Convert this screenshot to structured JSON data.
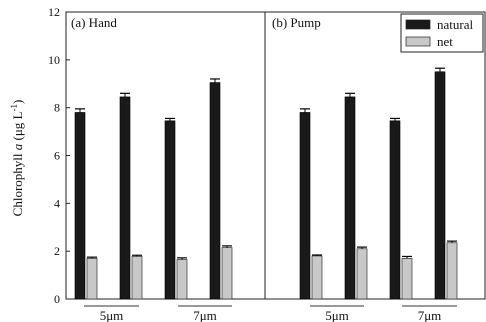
{
  "chart_data": {
    "type": "bar",
    "ylabel": {
      "prefix": "Chlorophyll ",
      "symbol": "a",
      "unit": " (μg L",
      "exponent": "-1",
      "close": ")"
    },
    "ylim": [
      0,
      12
    ],
    "yticks": [
      "0",
      "2",
      "4",
      "6",
      "8",
      "10",
      "12"
    ],
    "grid": false,
    "legend_position": "top-right",
    "colors": {
      "natural": "#1a1a1a",
      "net": "#c8c8c8"
    },
    "series": [
      {
        "name": "natural"
      },
      {
        "name": "net"
      }
    ],
    "panels": [
      {
        "label": "(a) Hand",
        "groups": [
          {
            "label": "5μm",
            "pairs": [
              {
                "natural": 7.8,
                "natural_err": 0.15,
                "net": 1.7,
                "net_err": 0.05
              },
              {
                "natural": 8.45,
                "natural_err": 0.15,
                "net": 1.78,
                "net_err": 0.05
              }
            ]
          },
          {
            "label": "7μm",
            "pairs": [
              {
                "natural": 7.45,
                "natural_err": 0.1,
                "net": 1.65,
                "net_err": 0.07
              },
              {
                "natural": 9.05,
                "natural_err": 0.15,
                "net": 2.15,
                "net_err": 0.07
              }
            ]
          }
        ]
      },
      {
        "label": "(b) Pump",
        "groups": [
          {
            "label": "5μm",
            "pairs": [
              {
                "natural": 7.8,
                "natural_err": 0.15,
                "net": 1.8,
                "net_err": 0.04
              },
              {
                "natural": 8.45,
                "natural_err": 0.15,
                "net": 2.1,
                "net_err": 0.07
              }
            ]
          },
          {
            "label": "7μm",
            "pairs": [
              {
                "natural": 7.45,
                "natural_err": 0.1,
                "net": 1.7,
                "net_err": 0.08
              },
              {
                "natural": 9.5,
                "natural_err": 0.15,
                "net": 2.35,
                "net_err": 0.07
              }
            ]
          }
        ]
      }
    ]
  }
}
